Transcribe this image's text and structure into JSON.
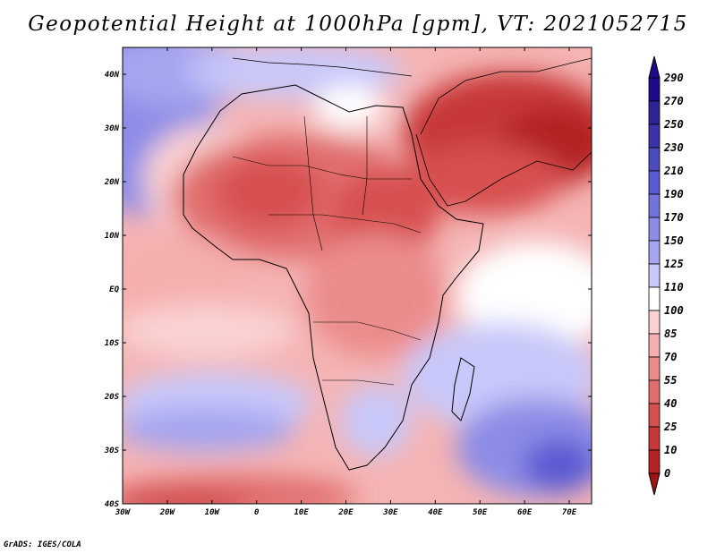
{
  "title": "Geopotential Height at 1000hPa [gpm], VT: 2021052715",
  "credit": "GrADS: IGES/COLA",
  "map": {
    "region": "Africa and Middle East",
    "x_ticks": [
      "30W",
      "20W",
      "10W",
      "0",
      "10E",
      "20E",
      "30E",
      "40E",
      "50E",
      "60E",
      "70E"
    ],
    "y_ticks": [
      "40N",
      "30N",
      "20N",
      "10N",
      "EQ",
      "10S",
      "20S",
      "30S",
      "40S"
    ],
    "lon_range": [
      -30,
      75
    ],
    "lat_range": [
      -40,
      45
    ]
  },
  "colorbar": {
    "levels": [
      "290",
      "270",
      "250",
      "230",
      "210",
      "190",
      "170",
      "150",
      "125",
      "110",
      "100",
      "85",
      "70",
      "55",
      "40",
      "25",
      "10",
      "0"
    ],
    "colors": [
      "#1e0a8c",
      "#2d2496",
      "#3c32aa",
      "#4b4bbe",
      "#5a5ad2",
      "#7373dc",
      "#8c8ce6",
      "#a5a5f0",
      "#c8c8fa",
      "#ffffff",
      "#fad2d2",
      "#f5afaf",
      "#eb8c8c",
      "#e16e6e",
      "#d75050",
      "#c83737",
      "#b42323",
      "#a01414"
    ]
  }
}
